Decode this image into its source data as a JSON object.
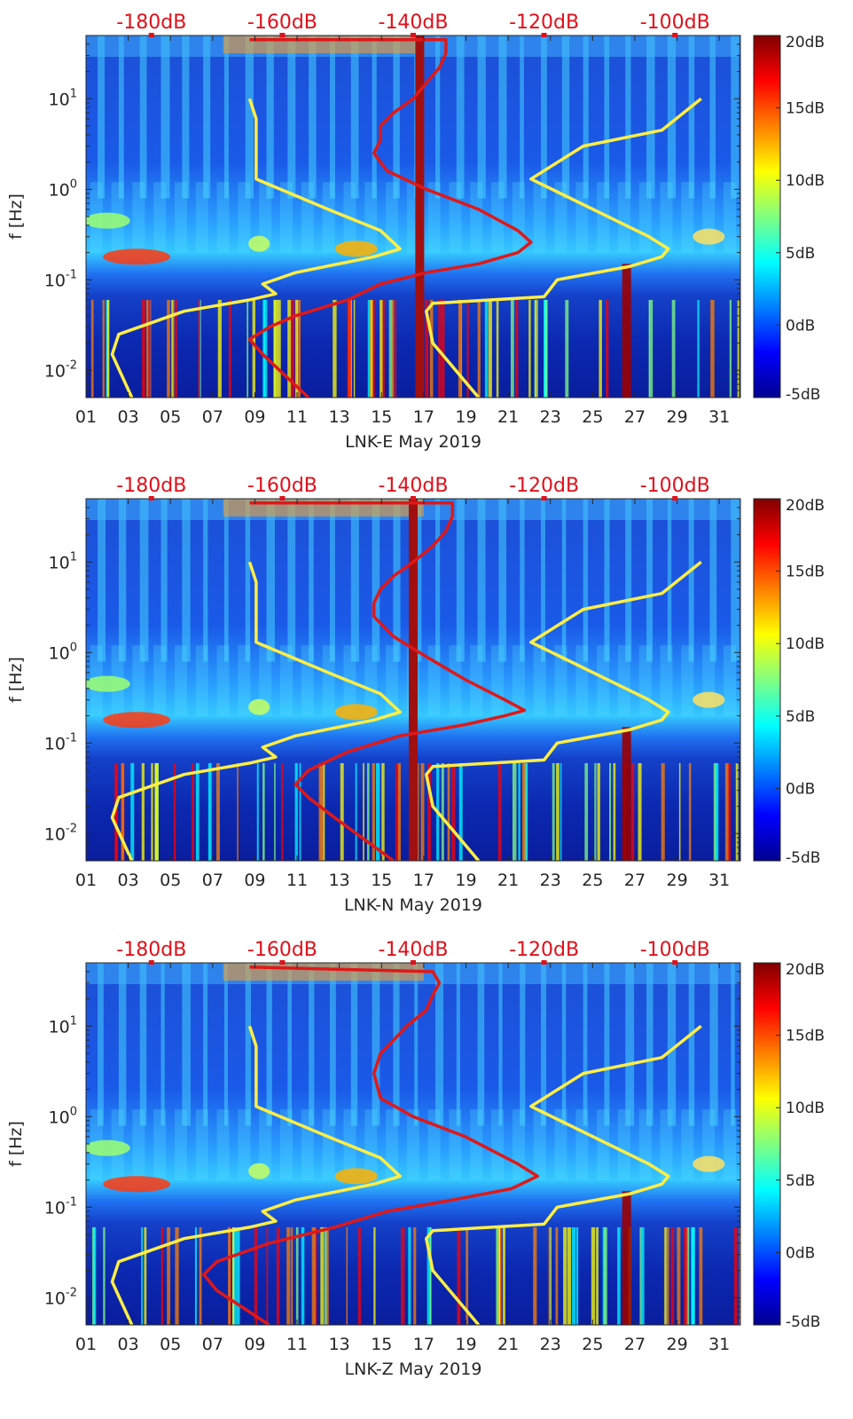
{
  "colors": {
    "model_line": "#ffee44",
    "psd_line": "#e01818",
    "db_scale_text": "#e0101a",
    "colormap": [
      "#00008f",
      "#0000ff",
      "#0080ff",
      "#00ffff",
      "#80ff80",
      "#ffff00",
      "#ff8000",
      "#ff0000",
      "#800000"
    ]
  },
  "chart_data": [
    {
      "type": "heatmap",
      "title": "",
      "xlabel": "LNK-E May 2019",
      "ylabel": "f [Hz]",
      "x_ticks": [
        "01",
        "03",
        "05",
        "07",
        "09",
        "11",
        "13",
        "15",
        "17",
        "19",
        "21",
        "23",
        "25",
        "27",
        "29",
        "31"
      ],
      "x_range_days": [
        1,
        32
      ],
      "y_scale": "log",
      "y_range_hz": [
        0.005,
        50
      ],
      "y_ticks": [
        {
          "value": 0.01,
          "base": "10",
          "exp": "-2"
        },
        {
          "value": 0.1,
          "base": "10",
          "exp": "-1"
        },
        {
          "value": 1,
          "base": "10",
          "exp": "0"
        },
        {
          "value": 10,
          "base": "10",
          "exp": "1"
        }
      ],
      "top_db_labels": [
        "-180dB",
        "-160dB",
        "-140dB",
        "-120dB",
        "-100dB"
      ],
      "top_db_range": [
        -190,
        -90
      ],
      "colorbar": {
        "min": -5,
        "max": 20,
        "labels": [
          "20dB",
          "15dB",
          "10dB",
          "5dB",
          "0dB",
          "-5dB"
        ]
      },
      "series": [
        {
          "name": "psd-curve",
          "color": "#e01818",
          "points": [
            [
              -156,
              0.005
            ],
            [
              -163,
              0.015
            ],
            [
              -165,
              0.022
            ],
            [
              -162,
              0.03
            ],
            [
              -158,
              0.04
            ],
            [
              -150,
              0.06
            ],
            [
              -145,
              0.09
            ],
            [
              -138,
              0.12
            ],
            [
              -130,
              0.15
            ],
            [
              -124,
              0.2
            ],
            [
              -122,
              0.26
            ],
            [
              -124,
              0.35
            ],
            [
              -130,
              0.6
            ],
            [
              -138,
              1.0
            ],
            [
              -144,
              1.6
            ],
            [
              -146,
              2.5
            ],
            [
              -145,
              3.5
            ],
            [
              -145,
              5.0
            ],
            [
              -143,
              7
            ],
            [
              -140,
              10
            ],
            [
              -138,
              15
            ],
            [
              -136,
              22
            ],
            [
              -135,
              32
            ],
            [
              -135,
              45
            ],
            [
              -165,
              45
            ]
          ]
        },
        {
          "name": "noise-model-low",
          "color": "#ffee44",
          "points": [
            [
              -183,
              0.005
            ],
            [
              -186,
              0.015
            ],
            [
              -185,
              0.025
            ],
            [
              -175,
              0.045
            ],
            [
              -165,
              0.06
            ],
            [
              -161,
              0.07
            ],
            [
              -163,
              0.09
            ],
            [
              -158,
              0.12
            ],
            [
              -146,
              0.18
            ],
            [
              -142,
              0.22
            ],
            [
              -145,
              0.35
            ],
            [
              -153,
              0.6
            ],
            [
              -164,
              1.3
            ],
            [
              -164,
              3
            ],
            [
              -164,
              6
            ],
            [
              -165,
              10
            ]
          ]
        },
        {
          "name": "noise-model-high",
          "color": "#ffee44",
          "points": [
            [
              -130,
              0.005
            ],
            [
              -137,
              0.02
            ],
            [
              -138,
              0.045
            ],
            [
              -137,
              0.055
            ],
            [
              -120,
              0.065
            ],
            [
              -118,
              0.1
            ],
            [
              -107,
              0.14
            ],
            [
              -102,
              0.18
            ],
            [
              -101,
              0.22
            ],
            [
              -104,
              0.3
            ],
            [
              -122,
              1.3
            ],
            [
              -114,
              3
            ],
            [
              -102,
              4.5
            ],
            [
              -96,
              10
            ]
          ]
        }
      ],
      "vertical_band": {
        "db": -139,
        "color": "#a01010"
      }
    },
    {
      "type": "heatmap",
      "title": "",
      "xlabel": "LNK-N May 2019",
      "ylabel": "f [Hz]",
      "x_ticks": [
        "01",
        "03",
        "05",
        "07",
        "09",
        "11",
        "13",
        "15",
        "17",
        "19",
        "21",
        "23",
        "25",
        "27",
        "29",
        "31"
      ],
      "x_range_days": [
        1,
        32
      ],
      "y_scale": "log",
      "y_range_hz": [
        0.005,
        50
      ],
      "y_ticks": [
        {
          "value": 0.01,
          "base": "10",
          "exp": "-2"
        },
        {
          "value": 0.1,
          "base": "10",
          "exp": "-1"
        },
        {
          "value": 1,
          "base": "10",
          "exp": "0"
        },
        {
          "value": 10,
          "base": "10",
          "exp": "1"
        }
      ],
      "top_db_labels": [
        "-180dB",
        "-160dB",
        "-140dB",
        "-120dB",
        "-100dB"
      ],
      "top_db_range": [
        -190,
        -90
      ],
      "colorbar": {
        "min": -5,
        "max": 20,
        "labels": [
          "20dB",
          "15dB",
          "10dB",
          "5dB",
          "0dB",
          "-5dB"
        ]
      },
      "series": [
        {
          "name": "psd-curve",
          "color": "#e01818",
          "points": [
            [
              -143,
              0.005
            ],
            [
              -152,
              0.015
            ],
            [
              -156,
              0.025
            ],
            [
              -158,
              0.035
            ],
            [
              -156,
              0.05
            ],
            [
              -150,
              0.08
            ],
            [
              -142,
              0.12
            ],
            [
              -132,
              0.16
            ],
            [
              -126,
              0.2
            ],
            [
              -123,
              0.23
            ],
            [
              -126,
              0.3
            ],
            [
              -132,
              0.5
            ],
            [
              -138,
              0.9
            ],
            [
              -143,
              1.5
            ],
            [
              -146,
              2.5
            ],
            [
              -146,
              3.5
            ],
            [
              -145,
              5
            ],
            [
              -143,
              7
            ],
            [
              -140,
              10
            ],
            [
              -137,
              15
            ],
            [
              -135,
              22
            ],
            [
              -134,
              32
            ],
            [
              -134,
              45
            ],
            [
              -165,
              45
            ]
          ]
        },
        {
          "name": "noise-model-low",
          "color": "#ffee44",
          "points": [
            [
              -183,
              0.005
            ],
            [
              -186,
              0.015
            ],
            [
              -185,
              0.025
            ],
            [
              -175,
              0.045
            ],
            [
              -165,
              0.06
            ],
            [
              -161,
              0.07
            ],
            [
              -163,
              0.09
            ],
            [
              -158,
              0.12
            ],
            [
              -146,
              0.18
            ],
            [
              -142,
              0.22
            ],
            [
              -145,
              0.35
            ],
            [
              -153,
              0.6
            ],
            [
              -164,
              1.3
            ],
            [
              -164,
              3
            ],
            [
              -164,
              6
            ],
            [
              -165,
              10
            ]
          ]
        },
        {
          "name": "noise-model-high",
          "color": "#ffee44",
          "points": [
            [
              -130,
              0.005
            ],
            [
              -137,
              0.02
            ],
            [
              -138,
              0.045
            ],
            [
              -137,
              0.055
            ],
            [
              -120,
              0.065
            ],
            [
              -118,
              0.1
            ],
            [
              -107,
              0.14
            ],
            [
              -102,
              0.18
            ],
            [
              -101,
              0.22
            ],
            [
              -104,
              0.3
            ],
            [
              -122,
              1.3
            ],
            [
              -114,
              3
            ],
            [
              -102,
              4.5
            ],
            [
              -96,
              10
            ]
          ]
        }
      ],
      "vertical_band": {
        "db": -140,
        "color": "#a01010"
      }
    },
    {
      "type": "heatmap",
      "title": "",
      "xlabel": "LNK-Z May 2019",
      "ylabel": "f [Hz]",
      "x_ticks": [
        "01",
        "03",
        "05",
        "07",
        "09",
        "11",
        "13",
        "15",
        "17",
        "19",
        "21",
        "23",
        "25",
        "27",
        "29",
        "31"
      ],
      "x_range_days": [
        1,
        32
      ],
      "y_scale": "log",
      "y_range_hz": [
        0.005,
        50
      ],
      "y_ticks": [
        {
          "value": 0.01,
          "base": "10",
          "exp": "-2"
        },
        {
          "value": 0.1,
          "base": "10",
          "exp": "-1"
        },
        {
          "value": 1,
          "base": "10",
          "exp": "0"
        },
        {
          "value": 10,
          "base": "10",
          "exp": "1"
        }
      ],
      "top_db_labels": [
        "-180dB",
        "-160dB",
        "-140dB",
        "-120dB",
        "-100dB"
      ],
      "top_db_range": [
        -190,
        -90
      ],
      "colorbar": {
        "min": -5,
        "max": 20,
        "labels": [
          "20dB",
          "15dB",
          "10dB",
          "5dB",
          "0dB",
          "-5dB"
        ]
      },
      "series": [
        {
          "name": "psd-curve",
          "color": "#e01818",
          "points": [
            [
              -162,
              0.005
            ],
            [
              -170,
              0.012
            ],
            [
              -172,
              0.018
            ],
            [
              -170,
              0.025
            ],
            [
              -162,
              0.04
            ],
            [
              -152,
              0.06
            ],
            [
              -144,
              0.09
            ],
            [
              -134,
              0.12
            ],
            [
              -125,
              0.16
            ],
            [
              -121,
              0.22
            ],
            [
              -124,
              0.3
            ],
            [
              -132,
              0.6
            ],
            [
              -140,
              1.0
            ],
            [
              -145,
              1.6
            ],
            [
              -146,
              3
            ],
            [
              -145,
              5
            ],
            [
              -143,
              7
            ],
            [
              -141,
              10
            ],
            [
              -138,
              15
            ],
            [
              -137,
              22
            ],
            [
              -136,
              30
            ],
            [
              -137,
              40
            ],
            [
              -165,
              45
            ]
          ]
        },
        {
          "name": "noise-model-low",
          "color": "#ffee44",
          "points": [
            [
              -183,
              0.005
            ],
            [
              -186,
              0.015
            ],
            [
              -185,
              0.025
            ],
            [
              -175,
              0.045
            ],
            [
              -165,
              0.06
            ],
            [
              -161,
              0.07
            ],
            [
              -163,
              0.09
            ],
            [
              -158,
              0.12
            ],
            [
              -146,
              0.18
            ],
            [
              -142,
              0.22
            ],
            [
              -145,
              0.35
            ],
            [
              -153,
              0.6
            ],
            [
              -164,
              1.3
            ],
            [
              -164,
              3
            ],
            [
              -164,
              6
            ],
            [
              -165,
              10
            ]
          ]
        },
        {
          "name": "noise-model-high",
          "color": "#ffee44",
          "points": [
            [
              -130,
              0.005
            ],
            [
              -137,
              0.02
            ],
            [
              -138,
              0.045
            ],
            [
              -137,
              0.055
            ],
            [
              -120,
              0.065
            ],
            [
              -118,
              0.1
            ],
            [
              -107,
              0.14
            ],
            [
              -102,
              0.18
            ],
            [
              -101,
              0.22
            ],
            [
              -104,
              0.3
            ],
            [
              -122,
              1.3
            ],
            [
              -114,
              3
            ],
            [
              -102,
              4.5
            ],
            [
              -96,
              10
            ]
          ]
        }
      ],
      "vertical_band": null
    }
  ]
}
